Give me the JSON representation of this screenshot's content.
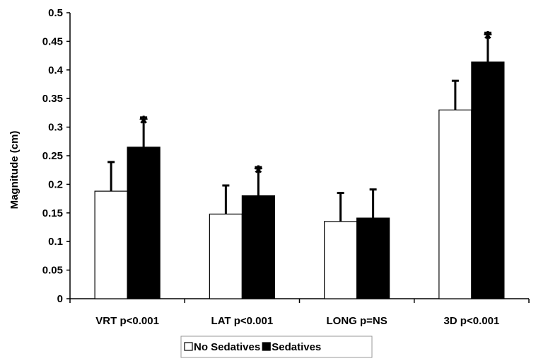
{
  "chart_data": {
    "type": "bar",
    "ylabel": "Magnitude (cm)",
    "ylim": [
      0,
      0.5
    ],
    "yticks": [
      "0",
      "0.05",
      "0.1",
      "0.15",
      "0.2",
      "0.25",
      "0.3",
      "0.35",
      "0.4",
      "0.45",
      "0.5"
    ],
    "categories": [
      "VRT p<0.001",
      "LAT p<0.001",
      "LONG p=NS",
      "3D p<0.001"
    ],
    "series": [
      {
        "name": "No Sedatives",
        "color": "#ffffff",
        "values": [
          0.188,
          0.148,
          0.135,
          0.33
        ],
        "errors": [
          0.051,
          0.05,
          0.05,
          0.051
        ]
      },
      {
        "name": "Sedatives",
        "color": "#000000",
        "values": [
          0.265,
          0.18,
          0.141,
          0.414
        ],
        "errors": [
          0.052,
          0.05,
          0.05,
          0.051
        ]
      }
    ],
    "significance": [
      "*",
      "*",
      "",
      "*"
    ],
    "legend_position": "bottom",
    "grid": false
  }
}
